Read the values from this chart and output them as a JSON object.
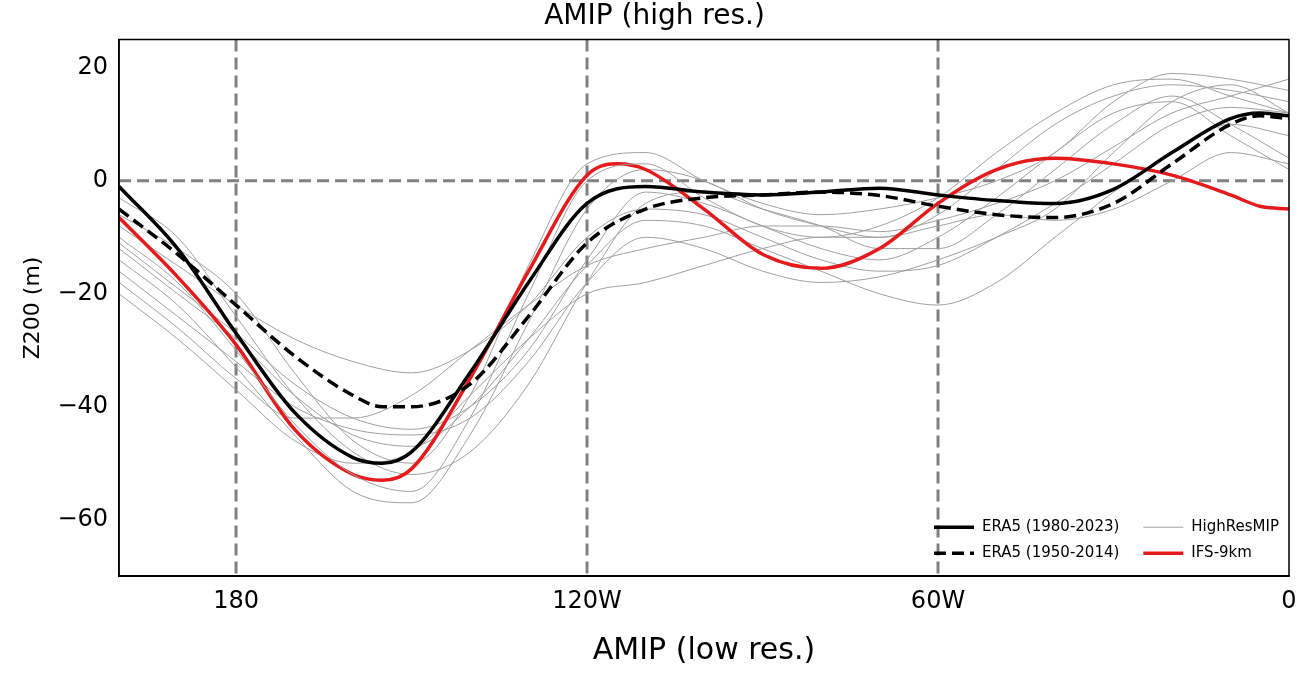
{
  "chart_data": {
    "type": "line",
    "title": "AMIP (high res.)",
    "xlabel": "AMIP (low res.)",
    "ylabel": "Z200 (m)",
    "xlim": [
      200,
      0
    ],
    "xticks": [
      180,
      {
        "value": 120,
        "label": "120W"
      },
      {
        "value": 60,
        "label": "60W"
      },
      0
    ],
    "ylim": [
      -70,
      25
    ],
    "yticks": [
      {
        "value": -60,
        "label": "−60"
      },
      {
        "value": -40,
        "label": "−40"
      },
      {
        "value": -20,
        "label": "−20"
      },
      0,
      20
    ],
    "grid": false,
    "legend": "bottom right",
    "marker": "none",
    "ref_lines": [
      {
        "axis": "y",
        "value": 0,
        "color": "#808080",
        "line_style": "dashed"
      },
      {
        "axis": "x",
        "value": 180,
        "color": "#808080",
        "line_style": "dashed"
      },
      {
        "axis": "x",
        "value": 120,
        "color": "#808080",
        "line_style": "dashed"
      },
      {
        "axis": "x",
        "value": 60,
        "color": "#808080",
        "line_style": "dashed"
      }
    ],
    "series": [
      {
        "name": "ERA5 (1980-2023)",
        "color": "#000000",
        "line_style": "solid",
        "x": [
          200,
          190,
          180,
          170,
          160,
          155,
          150,
          140,
          130,
          120,
          110,
          100,
          90,
          80,
          70,
          60,
          50,
          40,
          30,
          20,
          10,
          5,
          0
        ],
        "values": [
          -1,
          -12,
          -27,
          -41,
          -49,
          -50,
          -48,
          -34,
          -18,
          -4,
          -1,
          -2,
          -2.5,
          -2,
          -1.3,
          -2.5,
          -3.5,
          -4,
          -1.5,
          5,
          11,
          12,
          11.5
        ]
      },
      {
        "name": "ERA5 (1950-2014)",
        "color": "#000000",
        "line_style": "dashed",
        "x": [
          200,
          190,
          180,
          170,
          160,
          155,
          150,
          140,
          130,
          120,
          110,
          100,
          90,
          80,
          70,
          60,
          50,
          40,
          30,
          20,
          10,
          5,
          0
        ],
        "values": [
          -5,
          -13,
          -22,
          -31,
          -38,
          -40,
          -40,
          -36,
          -24,
          -11,
          -5,
          -3,
          -2.5,
          -2,
          -2.6,
          -4.5,
          -6,
          -6.5,
          -4,
          3,
          10,
          11.5,
          11
        ]
      },
      {
        "name": "HighResMIP",
        "color": "#a0a0a0",
        "line_style": "solid",
        "x": [
          200,
          190,
          180,
          170,
          160,
          150,
          140,
          130,
          120,
          110,
          100,
          90,
          80,
          70,
          60,
          50,
          40,
          30,
          20,
          10,
          0
        ],
        "values": [
          -10,
          -18,
          -30,
          -43,
          -52,
          -55,
          -42,
          -20,
          0,
          3,
          -3,
          -8,
          -10,
          -8,
          -3,
          5,
          12,
          17,
          18,
          15,
          12
        ]
      },
      {
        "name": "IFS-9km",
        "color": "#e41a1c",
        "line_style": "solid",
        "x": [
          200,
          190,
          180,
          170,
          160,
          155,
          150,
          140,
          130,
          120,
          115,
          110,
          100,
          90,
          80,
          70,
          60,
          50,
          40,
          30,
          20,
          10,
          5,
          0
        ],
        "values": [
          -6.5,
          -17,
          -29,
          -44,
          -52,
          -53,
          -51,
          -35,
          -16,
          1,
          3,
          2,
          -5,
          -13,
          -15.5,
          -12,
          -4,
          2,
          4,
          3,
          1,
          -2.5,
          -4.5,
          -5
        ]
      },
      {
        "color": "#a0a0a0",
        "line_style": "solid",
        "x": [
          200,
          190,
          180,
          170,
          160,
          150,
          140,
          130,
          120,
          110,
          100,
          90,
          80,
          70,
          60,
          50,
          40,
          30,
          20,
          10,
          0
        ],
        "values": [
          -14,
          -22,
          -33,
          -45,
          -55,
          -57,
          -45,
          -25,
          -5,
          2,
          0,
          -5,
          -8,
          -10,
          -6,
          2,
          10,
          15,
          17,
          16,
          14
        ]
      },
      {
        "color": "#a0a0a0",
        "line_style": "solid",
        "x": [
          200,
          190,
          180,
          170,
          160,
          150,
          140,
          130,
          120,
          110,
          100,
          90,
          80,
          70,
          60,
          50,
          40,
          30,
          20,
          10,
          0
        ],
        "values": [
          -8,
          -15,
          -22,
          -28,
          -32,
          -34,
          -30,
          -22,
          -10,
          -5,
          -6,
          -10,
          -14,
          -16,
          -15,
          -10,
          -4,
          3,
          10,
          13,
          12
        ]
      },
      {
        "color": "#a0a0a0",
        "line_style": "solid",
        "x": [
          200,
          190,
          180,
          170,
          160,
          150,
          140,
          130,
          120,
          110,
          100,
          90,
          80,
          70,
          60,
          50,
          40,
          30,
          20,
          10,
          0
        ],
        "values": [
          -12,
          -20,
          -28,
          -38,
          -45,
          -47,
          -40,
          -28,
          -15,
          -7,
          -8,
          -12,
          -16,
          -20,
          -22,
          -18,
          -10,
          -2,
          5,
          10,
          8
        ]
      },
      {
        "color": "#a0a0a0",
        "line_style": "solid",
        "x": [
          200,
          190,
          180,
          170,
          160,
          150,
          140,
          130,
          120,
          110,
          100,
          90,
          80,
          70,
          60,
          50,
          40,
          30,
          20,
          10,
          0
        ],
        "values": [
          -20,
          -28,
          -37,
          -46,
          -50,
          -48,
          -38,
          -28,
          -20,
          -18,
          -15,
          -12,
          -10,
          -10,
          -8,
          -6,
          -7,
          -5,
          0,
          5,
          3
        ]
      },
      {
        "color": "#a0a0a0",
        "line_style": "solid",
        "x": [
          200,
          190,
          180,
          170,
          160,
          150,
          140,
          130,
          120,
          110,
          100,
          90,
          80,
          70,
          60,
          50,
          40,
          30,
          20,
          10,
          0
        ],
        "values": [
          -6,
          -12,
          -20,
          -34,
          -46,
          -50,
          -38,
          -15,
          3,
          5,
          0,
          -4,
          -6,
          -5,
          -3,
          0,
          5,
          14,
          19,
          18,
          16
        ]
      },
      {
        "color": "#a0a0a0",
        "line_style": "solid",
        "x": [
          200,
          190,
          180,
          170,
          160,
          150,
          140,
          130,
          120,
          110,
          100,
          90,
          80,
          70,
          60,
          50,
          40,
          30,
          20,
          10,
          0
        ],
        "values": [
          -16,
          -24,
          -32,
          -40,
          -44,
          -45,
          -42,
          -32,
          -18,
          -10,
          -12,
          -16,
          -18,
          -17,
          -14,
          -10,
          -5,
          5,
          14,
          17,
          12
        ]
      },
      {
        "color": "#a0a0a0",
        "line_style": "solid",
        "x": [
          200,
          190,
          180,
          170,
          160,
          150,
          140,
          130,
          120,
          110,
          100,
          90,
          80,
          70,
          60,
          50,
          40,
          30,
          20,
          10,
          0
        ],
        "values": [
          -3,
          -10,
          -24,
          -38,
          -48,
          -52,
          -48,
          -36,
          -18,
          -4,
          -2,
          -5,
          -8,
          -12,
          -12,
          -6,
          2,
          10,
          15,
          10,
          4
        ]
      },
      {
        "color": "#a0a0a0",
        "line_style": "solid",
        "x": [
          200,
          190,
          180,
          170,
          160,
          150,
          140,
          130,
          120,
          110,
          100,
          90,
          80,
          70,
          60,
          50,
          40,
          30,
          20,
          10,
          0
        ],
        "values": [
          -18,
          -26,
          -35,
          -42,
          -42,
          -38,
          -30,
          -22,
          -15,
          -12,
          -10,
          -8,
          -8,
          -9,
          -7,
          -4,
          0,
          6,
          12,
          15,
          18
        ]
      },
      {
        "color": "#a0a0a0",
        "line_style": "solid",
        "x": [
          200,
          190,
          180,
          170,
          160,
          150,
          140,
          130,
          120,
          110,
          100,
          90,
          80,
          70,
          60,
          50,
          40,
          30,
          20,
          10,
          0
        ],
        "values": [
          -11,
          -19,
          -27,
          -36,
          -42,
          -44,
          -40,
          -30,
          -14,
          -2,
          -4,
          -8,
          -12,
          -14,
          -10,
          -3,
          5,
          12,
          14,
          8,
          2
        ]
      }
    ]
  }
}
